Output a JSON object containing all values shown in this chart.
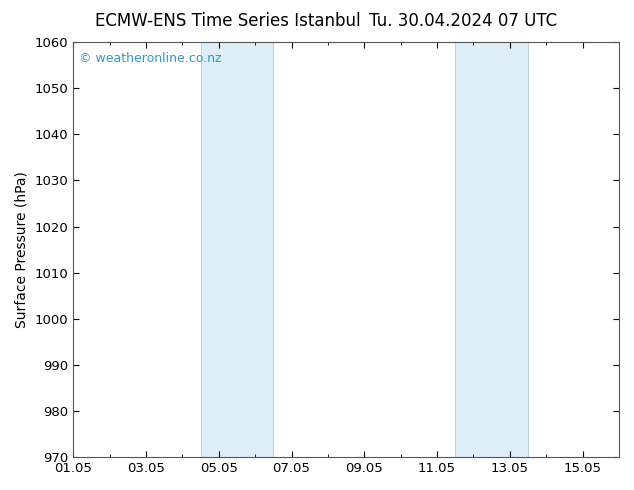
{
  "title_left": "ECMW-ENS Time Series Istanbul",
  "title_right": "Tu. 30.04.2024 07 UTC",
  "ylabel": "Surface Pressure (hPa)",
  "ylim": [
    970,
    1060
  ],
  "yticks": [
    970,
    980,
    990,
    1000,
    1010,
    1020,
    1030,
    1040,
    1050,
    1060
  ],
  "xtick_labels": [
    "01.05",
    "03.05",
    "05.05",
    "07.05",
    "09.05",
    "11.05",
    "13.05",
    "15.05"
  ],
  "xtick_positions": [
    0,
    2,
    4,
    6,
    8,
    10,
    12,
    14
  ],
  "xlim": [
    0,
    15
  ],
  "shaded_bands": [
    {
      "x_start": 3.5,
      "x_end": 5.5
    },
    {
      "x_start": 10.5,
      "x_end": 12.5
    }
  ],
  "shade_color": "#ddeef8",
  "shade_edge_color": "#b8d4e8",
  "background_color": "#ffffff",
  "spine_color": "#555555",
  "watermark_text": "© weatheronline.co.nz",
  "watermark_color": "#3399cc",
  "title_fontsize": 12,
  "label_fontsize": 10,
  "tick_fontsize": 9.5,
  "watermark_fontsize": 9
}
